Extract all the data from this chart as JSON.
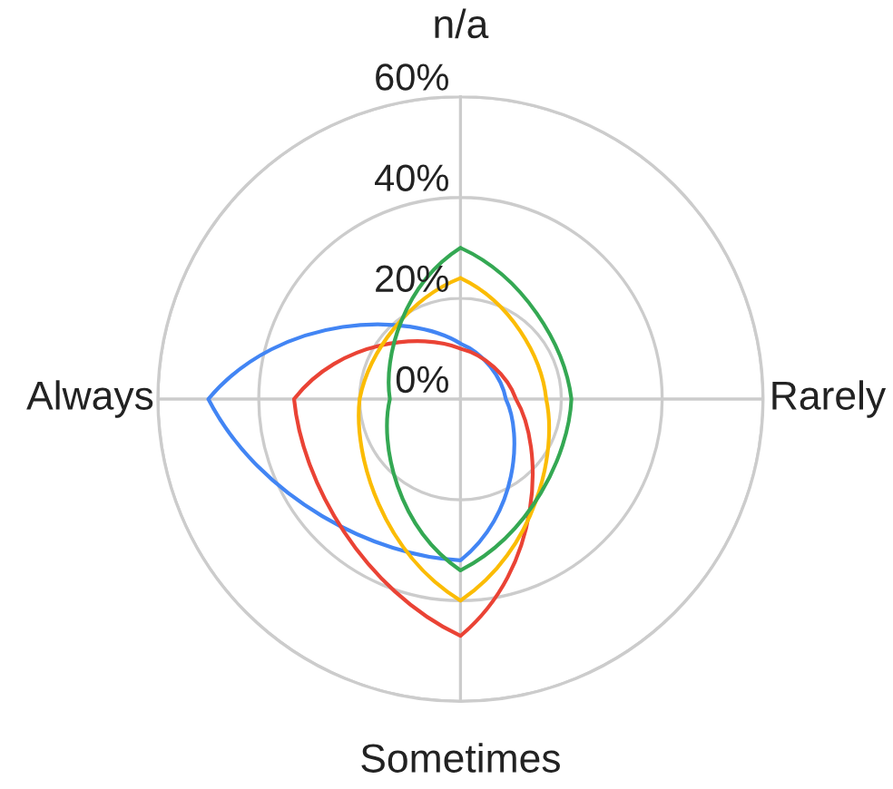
{
  "chart_data": {
    "type": "radar",
    "categories": [
      "n/a",
      "Rarely",
      "Sometimes",
      "Always"
    ],
    "series": [
      {
        "color": "#4285f4",
        "values": [
          11,
          9,
          32,
          50
        ]
      },
      {
        "color": "#ea4335",
        "values": [
          10,
          11,
          47,
          33
        ]
      },
      {
        "color": "#fbbc04",
        "values": [
          24,
          17,
          40,
          20
        ]
      },
      {
        "color": "#34a853",
        "values": [
          30,
          22,
          34,
          14
        ]
      }
    ],
    "ylim": [
      0,
      60
    ],
    "yticks": [
      {
        "value": 0,
        "label": "0%"
      },
      {
        "value": 20,
        "label": "20%"
      },
      {
        "value": 40,
        "label": "40%"
      },
      {
        "value": 60,
        "label": "60%"
      }
    ],
    "grid": true
  }
}
